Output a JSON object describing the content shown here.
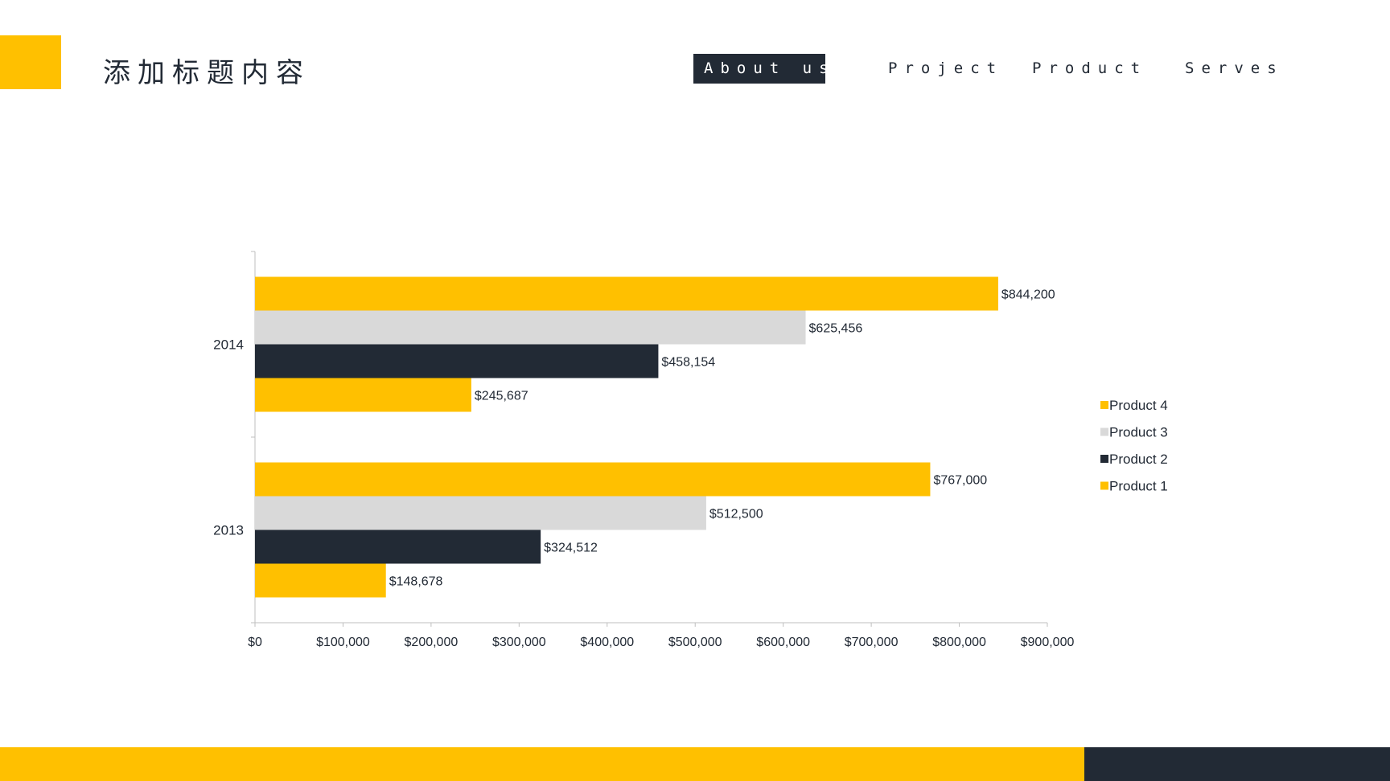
{
  "header": {
    "title": "添加标题内容",
    "nav": [
      {
        "label": "About us",
        "active": true
      },
      {
        "label": "Project",
        "active": false
      },
      {
        "label": "Product",
        "active": false
      },
      {
        "label": "Serves",
        "active": false
      }
    ]
  },
  "colors": {
    "accent": "#FFC000",
    "dark": "#222A35",
    "light_gray": "#D9D9D9"
  },
  "chart_data": {
    "type": "bar",
    "orientation": "horizontal",
    "categories": [
      "2013",
      "2014"
    ],
    "series": [
      {
        "name": "Product 1",
        "color": "#FFC000",
        "values": [
          148678,
          245687
        ],
        "labels": [
          "$148,678",
          "$245,687"
        ]
      },
      {
        "name": "Product 2",
        "color": "#222A35",
        "values": [
          324512,
          458154
        ],
        "labels": [
          "$324,512",
          "$458,154"
        ]
      },
      {
        "name": "Product 3",
        "color": "#D9D9D9",
        "values": [
          512500,
          625456
        ],
        "labels": [
          "$512,500",
          "$625,456"
        ]
      },
      {
        "name": "Product 4",
        "color": "#FFC000",
        "values": [
          767000,
          844200
        ],
        "labels": [
          "$767,000",
          "$844,200"
        ]
      }
    ],
    "xlim": [
      0,
      900000
    ],
    "x_ticks": [
      0,
      100000,
      200000,
      300000,
      400000,
      500000,
      600000,
      700000,
      800000,
      900000
    ],
    "x_tick_labels": [
      "$0",
      "$100,000",
      "$200,000",
      "$300,000",
      "$400,000",
      "$500,000",
      "$600,000",
      "$700,000",
      "$800,000",
      "$900,000"
    ],
    "legend_order": [
      "Product 4",
      "Product 3",
      "Product 2",
      "Product 1"
    ],
    "legend_position": "right",
    "grid": false
  }
}
